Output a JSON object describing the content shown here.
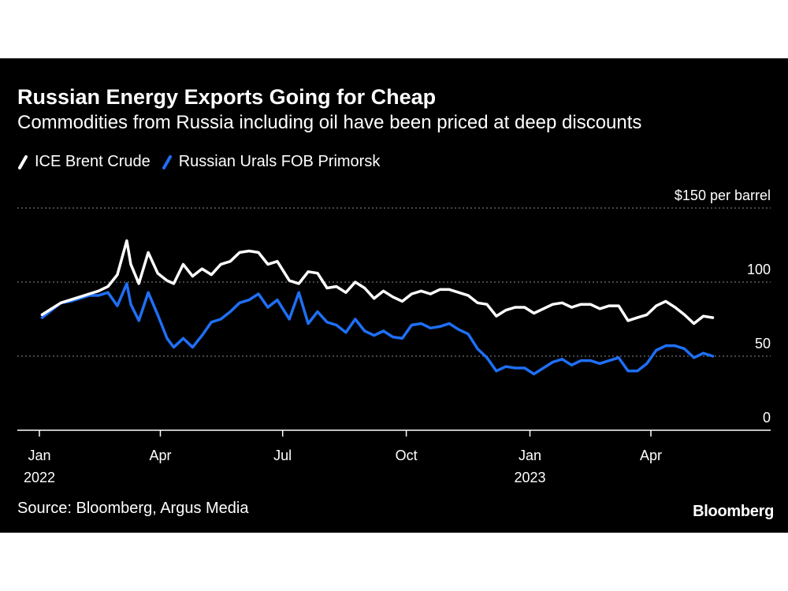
{
  "header": {
    "title": "Russian Energy Exports Going for Cheap",
    "subtitle": "Commodities from Russia including oil have been priced at deep discounts"
  },
  "footer": {
    "source": "Source: Bloomberg, Argus Media",
    "brand": "Bloomberg"
  },
  "colors": {
    "background": "#000000",
    "brent": "#ffffff",
    "urals": "#1f6ff5",
    "grid": "#8c8c8c"
  },
  "chart_data": {
    "type": "line",
    "title": "Russian Energy Exports Going for Cheap",
    "subtitle": "Commodities from Russia including oil have been priced at deep discounts",
    "y_unit_label": "per barrel",
    "ylim": [
      0,
      150
    ],
    "yticks": [
      {
        "value": 0,
        "label": "0"
      },
      {
        "value": 50,
        "label": "50"
      },
      {
        "value": 100,
        "label": "100"
      },
      {
        "value": 150,
        "label": "$150"
      }
    ],
    "xlim": [
      "2022-01-01",
      "2023-06-01"
    ],
    "xticks": [
      {
        "date": "2022-01-01",
        "label": "Jan",
        "year": "2022"
      },
      {
        "date": "2022-04-01",
        "label": "Apr",
        "year": ""
      },
      {
        "date": "2022-07-01",
        "label": "Jul",
        "year": ""
      },
      {
        "date": "2022-10-01",
        "label": "Oct",
        "year": ""
      },
      {
        "date": "2023-01-01",
        "label": "Jan",
        "year": "2023"
      },
      {
        "date": "2023-04-01",
        "label": "Apr",
        "year": ""
      }
    ],
    "grid": true,
    "legend_position": "top-left",
    "series": [
      {
        "name": "ICE Brent Crude",
        "color": "#ffffff",
        "points": [
          [
            "2022-01-03",
            78
          ],
          [
            "2022-01-10",
            82
          ],
          [
            "2022-01-17",
            86
          ],
          [
            "2022-01-24",
            88
          ],
          [
            "2022-01-31",
            90
          ],
          [
            "2022-02-07",
            92
          ],
          [
            "2022-02-14",
            94
          ],
          [
            "2022-02-21",
            97
          ],
          [
            "2022-02-28",
            105
          ],
          [
            "2022-03-07",
            128
          ],
          [
            "2022-03-10",
            112
          ],
          [
            "2022-03-16",
            99
          ],
          [
            "2022-03-23",
            120
          ],
          [
            "2022-03-30",
            106
          ],
          [
            "2022-04-06",
            101
          ],
          [
            "2022-04-11",
            99
          ],
          [
            "2022-04-18",
            112
          ],
          [
            "2022-04-25",
            104
          ],
          [
            "2022-05-02",
            109
          ],
          [
            "2022-05-09",
            105
          ],
          [
            "2022-05-16",
            112
          ],
          [
            "2022-05-23",
            114
          ],
          [
            "2022-05-30",
            120
          ],
          [
            "2022-06-06",
            121
          ],
          [
            "2022-06-13",
            120
          ],
          [
            "2022-06-20",
            112
          ],
          [
            "2022-06-27",
            114
          ],
          [
            "2022-07-06",
            101
          ],
          [
            "2022-07-13",
            99
          ],
          [
            "2022-07-20",
            107
          ],
          [
            "2022-07-27",
            106
          ],
          [
            "2022-08-03",
            96
          ],
          [
            "2022-08-10",
            97
          ],
          [
            "2022-08-17",
            93
          ],
          [
            "2022-08-24",
            100
          ],
          [
            "2022-08-31",
            96
          ],
          [
            "2022-09-07",
            89
          ],
          [
            "2022-09-14",
            94
          ],
          [
            "2022-09-21",
            90
          ],
          [
            "2022-09-28",
            87
          ],
          [
            "2022-10-05",
            92
          ],
          [
            "2022-10-12",
            94
          ],
          [
            "2022-10-19",
            92
          ],
          [
            "2022-10-26",
            95
          ],
          [
            "2022-11-02",
            95
          ],
          [
            "2022-11-09",
            93
          ],
          [
            "2022-11-16",
            91
          ],
          [
            "2022-11-23",
            86
          ],
          [
            "2022-11-30",
            85
          ],
          [
            "2022-12-07",
            77
          ],
          [
            "2022-12-14",
            81
          ],
          [
            "2022-12-21",
            83
          ],
          [
            "2022-12-28",
            83
          ],
          [
            "2023-01-04",
            79
          ],
          [
            "2023-01-11",
            82
          ],
          [
            "2023-01-18",
            85
          ],
          [
            "2023-01-25",
            86
          ],
          [
            "2023-02-01",
            83
          ],
          [
            "2023-02-08",
            85
          ],
          [
            "2023-02-15",
            85
          ],
          [
            "2023-02-22",
            82
          ],
          [
            "2023-03-01",
            84
          ],
          [
            "2023-03-08",
            84
          ],
          [
            "2023-03-15",
            74
          ],
          [
            "2023-03-22",
            76
          ],
          [
            "2023-03-29",
            78
          ],
          [
            "2023-04-05",
            84
          ],
          [
            "2023-04-12",
            87
          ],
          [
            "2023-04-19",
            83
          ],
          [
            "2023-04-26",
            78
          ],
          [
            "2023-05-03",
            72
          ],
          [
            "2023-05-10",
            77
          ],
          [
            "2023-05-17",
            76
          ]
        ]
      },
      {
        "name": "Russian Urals FOB Primorsk",
        "color": "#1f6ff5",
        "points": [
          [
            "2022-01-03",
            76
          ],
          [
            "2022-01-10",
            81
          ],
          [
            "2022-01-17",
            86
          ],
          [
            "2022-01-24",
            87
          ],
          [
            "2022-01-31",
            89
          ],
          [
            "2022-02-07",
            91
          ],
          [
            "2022-02-14",
            91
          ],
          [
            "2022-02-21",
            93
          ],
          [
            "2022-02-28",
            84
          ],
          [
            "2022-03-07",
            99
          ],
          [
            "2022-03-10",
            85
          ],
          [
            "2022-03-16",
            74
          ],
          [
            "2022-03-23",
            93
          ],
          [
            "2022-03-30",
            78
          ],
          [
            "2022-04-06",
            62
          ],
          [
            "2022-04-11",
            56
          ],
          [
            "2022-04-18",
            62
          ],
          [
            "2022-04-25",
            56
          ],
          [
            "2022-05-02",
            64
          ],
          [
            "2022-05-09",
            73
          ],
          [
            "2022-05-16",
            75
          ],
          [
            "2022-05-23",
            80
          ],
          [
            "2022-05-30",
            86
          ],
          [
            "2022-06-06",
            88
          ],
          [
            "2022-06-13",
            92
          ],
          [
            "2022-06-20",
            83
          ],
          [
            "2022-06-27",
            88
          ],
          [
            "2022-07-06",
            75
          ],
          [
            "2022-07-13",
            93
          ],
          [
            "2022-07-20",
            72
          ],
          [
            "2022-07-27",
            80
          ],
          [
            "2022-08-03",
            73
          ],
          [
            "2022-08-10",
            71
          ],
          [
            "2022-08-17",
            66
          ],
          [
            "2022-08-24",
            75
          ],
          [
            "2022-08-31",
            67
          ],
          [
            "2022-09-07",
            64
          ],
          [
            "2022-09-14",
            67
          ],
          [
            "2022-09-21",
            63
          ],
          [
            "2022-09-28",
            62
          ],
          [
            "2022-10-05",
            71
          ],
          [
            "2022-10-12",
            72
          ],
          [
            "2022-10-19",
            69
          ],
          [
            "2022-10-26",
            70
          ],
          [
            "2022-11-02",
            72
          ],
          [
            "2022-11-09",
            68
          ],
          [
            "2022-11-16",
            65
          ],
          [
            "2022-11-23",
            55
          ],
          [
            "2022-11-30",
            49
          ],
          [
            "2022-12-07",
            40
          ],
          [
            "2022-12-14",
            43
          ],
          [
            "2022-12-21",
            42
          ],
          [
            "2022-12-28",
            42
          ],
          [
            "2023-01-04",
            38
          ],
          [
            "2023-01-11",
            42
          ],
          [
            "2023-01-18",
            46
          ],
          [
            "2023-01-25",
            48
          ],
          [
            "2023-02-01",
            44
          ],
          [
            "2023-02-08",
            47
          ],
          [
            "2023-02-15",
            47
          ],
          [
            "2023-02-22",
            45
          ],
          [
            "2023-03-01",
            47
          ],
          [
            "2023-03-08",
            49
          ],
          [
            "2023-03-15",
            40
          ],
          [
            "2023-03-22",
            40
          ],
          [
            "2023-03-29",
            45
          ],
          [
            "2023-04-05",
            54
          ],
          [
            "2023-04-12",
            57
          ],
          [
            "2023-04-19",
            57
          ],
          [
            "2023-04-26",
            55
          ],
          [
            "2023-05-03",
            49
          ],
          [
            "2023-05-10",
            52
          ],
          [
            "2023-05-17",
            50
          ]
        ]
      }
    ]
  }
}
